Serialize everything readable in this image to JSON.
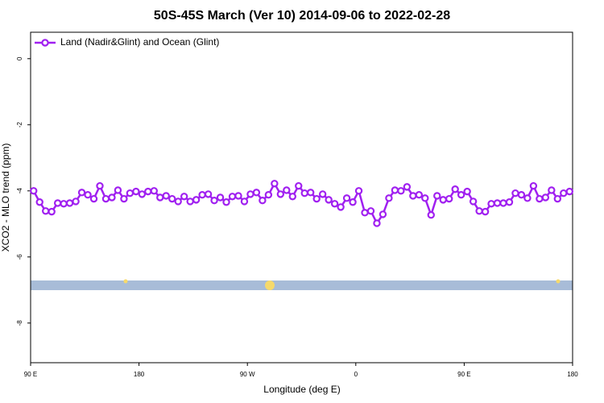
{
  "chart_data": {
    "type": "line",
    "title": "50S-45S March (Ver 10)   2014-09-06 to 2022-02-28",
    "x_label": "Longitude (deg E)",
    "y_label": "XCO2 - MLO trend (ppm)",
    "legend_position": "top-left",
    "xlim": [
      90,
      540
    ],
    "xticks": [
      {
        "value": 90,
        "label": "90 E"
      },
      {
        "value": 180,
        "label": "180"
      },
      {
        "value": 270,
        "label": "90 W"
      },
      {
        "value": 360,
        "label": "0"
      },
      {
        "value": 450,
        "label": "90 E"
      },
      {
        "value": 540,
        "label": "180"
      }
    ],
    "ylim": [
      -9.2,
      0.8
    ],
    "yticks": [
      0,
      -2,
      -4,
      -6,
      -8
    ],
    "x": [
      92.5,
      97.5,
      102.5,
      107.5,
      112.5,
      117.5,
      122.5,
      127.5,
      132.5,
      137.5,
      142.5,
      147.5,
      152.5,
      157.5,
      162.5,
      167.5,
      172.5,
      177.5,
      182.5,
      187.5,
      192.5,
      197.5,
      202.5,
      207.5,
      212.5,
      217.5,
      222.5,
      227.5,
      232.5,
      237.5,
      242.5,
      247.5,
      252.5,
      257.5,
      262.5,
      267.5,
      272.5,
      277.5,
      282.5,
      287.5,
      292.5,
      297.5,
      302.5,
      307.5,
      312.5,
      317.5,
      322.5,
      327.5,
      332.5,
      337.5,
      342.5,
      347.5,
      352.5,
      357.5,
      362.5,
      367.5,
      372.5,
      377.5,
      382.5,
      387.5,
      392.5,
      397.5,
      402.5,
      407.5,
      412.5,
      417.5,
      422.5,
      427.5,
      432.5,
      437.5,
      442.5,
      447.5,
      452.5,
      457.5,
      462.5,
      467.5,
      472.5,
      477.5,
      482.5,
      487.5,
      492.5,
      497.5,
      502.5,
      507.5,
      512.5,
      517.5,
      522.5,
      527.5,
      532.5,
      537.5
    ],
    "series": [
      {
        "name": "Land (Nadir&Glint) and Ocean (Glint)",
        "color": "#a020f0",
        "values": [
          -4.0,
          -4.34,
          -4.61,
          -4.63,
          -4.37,
          -4.39,
          -4.37,
          -4.32,
          -4.05,
          -4.12,
          -4.24,
          -3.85,
          -4.24,
          -4.2,
          -3.98,
          -4.24,
          -4.07,
          -4.02,
          -4.1,
          -4.02,
          -4.0,
          -4.2,
          -4.15,
          -4.24,
          -4.32,
          -4.17,
          -4.32,
          -4.27,
          -4.12,
          -4.1,
          -4.29,
          -4.2,
          -4.34,
          -4.17,
          -4.15,
          -4.32,
          -4.1,
          -4.05,
          -4.29,
          -4.12,
          -3.78,
          -4.1,
          -3.98,
          -4.17,
          -3.85,
          -4.07,
          -4.05,
          -4.24,
          -4.1,
          -4.27,
          -4.39,
          -4.49,
          -4.22,
          -4.34,
          -4.0,
          -4.66,
          -4.61,
          -4.98,
          -4.71,
          -4.22,
          -3.98,
          -4.0,
          -3.88,
          -4.15,
          -4.12,
          -4.22,
          -4.73,
          -4.15,
          -4.27,
          -4.24,
          -3.95,
          -4.12,
          -4.02,
          -4.32,
          -4.61,
          -4.63,
          -4.39,
          -4.37,
          -4.37,
          -4.34,
          -4.07,
          -4.12,
          -4.22,
          -3.85,
          -4.24,
          -4.2,
          -3.98,
          -4.24,
          -4.07,
          -4.02
        ]
      }
    ]
  }
}
